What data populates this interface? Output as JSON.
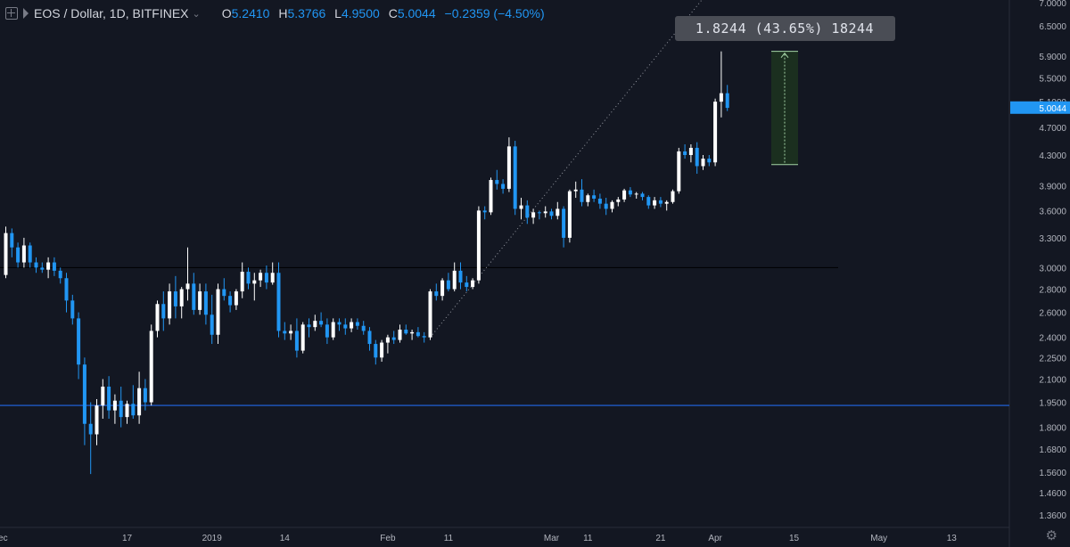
{
  "header": {
    "symbol": "EOS / Dollar, 1D, BITFINEX",
    "chevron": "⌄",
    "o_label": "O",
    "o_value": "5.2410",
    "h_label": "H",
    "h_value": "5.3766",
    "l_label": "L",
    "l_value": "4.9500",
    "c_label": "C",
    "c_value": "5.0044",
    "change": "−0.2359 (−4.50%)"
  },
  "measure_tooltip": "1.8244 (43.65%) 18244",
  "last_price_label": "5.0044",
  "colors": {
    "background": "#131722",
    "up": "#ffffff",
    "down": "#2196f3",
    "support_line": "#1e54b7",
    "resistance_line": "#000000",
    "measure_box": "#1b2f1f",
    "measure_border": "#a5d6a7",
    "text": "#b2b5be"
  },
  "chart_data": {
    "type": "candlestick",
    "y_scale": "log",
    "y_ticks": [
      "7.0000",
      "6.5000",
      "5.9000",
      "5.5000",
      "5.1000",
      "4.7000",
      "4.3000",
      "3.9000",
      "3.6000",
      "3.3000",
      "3.0000",
      "2.8000",
      "2.6000",
      "2.4000",
      "2.2500",
      "2.1000",
      "1.9500",
      "1.8000",
      "1.6800",
      "1.5600",
      "1.4600",
      "1.3600"
    ],
    "x_ticks": [
      "Dec",
      "17",
      "2019",
      "14",
      "Feb",
      "11",
      "Mar",
      "11",
      "21",
      "Apr",
      "15",
      "May",
      "13"
    ],
    "horizontal_lines": [
      1.93,
      3.0
    ],
    "measure": {
      "from": 4.17,
      "to": 5.99,
      "text": "1.8244 (43.65%) 18244"
    },
    "candles": [
      [
        2.93,
        3.42,
        2.9,
        3.35
      ],
      [
        3.35,
        3.4,
        3.1,
        3.2
      ],
      [
        3.2,
        3.25,
        3.0,
        3.05
      ],
      [
        3.05,
        3.3,
        3.0,
        3.22
      ],
      [
        3.22,
        3.25,
        3.0,
        3.05
      ],
      [
        3.05,
        3.1,
        2.95,
        3.0
      ],
      [
        3.0,
        3.05,
        2.95,
        2.98
      ],
      [
        2.98,
        3.1,
        2.9,
        3.05
      ],
      [
        3.05,
        3.1,
        2.92,
        2.97
      ],
      [
        2.97,
        3.0,
        2.85,
        2.9
      ],
      [
        2.9,
        2.95,
        2.6,
        2.7
      ],
      [
        2.7,
        2.75,
        2.5,
        2.55
      ],
      [
        2.55,
        2.6,
        2.1,
        2.2
      ],
      [
        2.2,
        2.25,
        1.7,
        1.82
      ],
      [
        1.82,
        1.95,
        1.55,
        1.76
      ],
      [
        1.76,
        1.97,
        1.7,
        1.93
      ],
      [
        1.93,
        2.1,
        1.85,
        2.05
      ],
      [
        2.05,
        2.12,
        1.85,
        1.9
      ],
      [
        1.9,
        2.0,
        1.82,
        1.96
      ],
      [
        1.96,
        2.05,
        1.8,
        1.86
      ],
      [
        1.86,
        1.96,
        1.82,
        1.94
      ],
      [
        1.94,
        2.06,
        1.85,
        1.87
      ],
      [
        1.87,
        2.15,
        1.82,
        2.04
      ],
      [
        2.04,
        2.1,
        1.9,
        1.95
      ],
      [
        1.95,
        2.5,
        1.93,
        2.45
      ],
      [
        2.45,
        2.7,
        2.4,
        2.67
      ],
      [
        2.67,
        2.78,
        2.45,
        2.55
      ],
      [
        2.55,
        2.85,
        2.5,
        2.78
      ],
      [
        2.78,
        2.92,
        2.55,
        2.65
      ],
      [
        2.65,
        2.82,
        2.55,
        2.8
      ],
      [
        2.8,
        3.2,
        2.7,
        2.85
      ],
      [
        2.85,
        2.95,
        2.58,
        2.62
      ],
      [
        2.62,
        2.85,
        2.58,
        2.78
      ],
      [
        2.78,
        2.85,
        2.5,
        2.58
      ],
      [
        2.58,
        2.75,
        2.35,
        2.42
      ],
      [
        2.42,
        2.85,
        2.35,
        2.8
      ],
      [
        2.8,
        2.9,
        2.7,
        2.74
      ],
      [
        2.74,
        2.78,
        2.6,
        2.66
      ],
      [
        2.66,
        2.8,
        2.62,
        2.78
      ],
      [
        2.78,
        3.05,
        2.72,
        2.96
      ],
      [
        2.96,
        3.0,
        2.8,
        2.85
      ],
      [
        2.85,
        2.95,
        2.7,
        2.88
      ],
      [
        2.88,
        2.98,
        2.82,
        2.95
      ],
      [
        2.95,
        3.02,
        2.8,
        2.86
      ],
      [
        2.86,
        3.05,
        2.84,
        2.95
      ],
      [
        2.95,
        3.05,
        2.4,
        2.45
      ],
      [
        2.45,
        2.52,
        2.38,
        2.43
      ],
      [
        2.43,
        2.5,
        2.38,
        2.45
      ],
      [
        2.45,
        2.55,
        2.25,
        2.3
      ],
      [
        2.3,
        2.52,
        2.28,
        2.5
      ],
      [
        2.5,
        2.55,
        2.4,
        2.48
      ],
      [
        2.48,
        2.58,
        2.45,
        2.53
      ],
      [
        2.53,
        2.6,
        2.48,
        2.5
      ],
      [
        2.5,
        2.55,
        2.35,
        2.4
      ],
      [
        2.4,
        2.55,
        2.38,
        2.52
      ],
      [
        2.52,
        2.55,
        2.45,
        2.5
      ],
      [
        2.5,
        2.55,
        2.42,
        2.47
      ],
      [
        2.47,
        2.55,
        2.44,
        2.52
      ],
      [
        2.52,
        2.55,
        2.46,
        2.49
      ],
      [
        2.49,
        2.53,
        2.42,
        2.45
      ],
      [
        2.45,
        2.48,
        2.3,
        2.35
      ],
      [
        2.35,
        2.38,
        2.2,
        2.25
      ],
      [
        2.25,
        2.38,
        2.22,
        2.36
      ],
      [
        2.36,
        2.42,
        2.28,
        2.4
      ],
      [
        2.4,
        2.45,
        2.35,
        2.38
      ],
      [
        2.38,
        2.5,
        2.36,
        2.46
      ],
      [
        2.46,
        2.5,
        2.42,
        2.43
      ],
      [
        2.43,
        2.46,
        2.38,
        2.44
      ],
      [
        2.44,
        2.48,
        2.4,
        2.41
      ],
      [
        2.41,
        2.44,
        2.36,
        2.4
      ],
      [
        2.4,
        2.8,
        2.38,
        2.78
      ],
      [
        2.78,
        2.85,
        2.7,
        2.74
      ],
      [
        2.74,
        2.9,
        2.7,
        2.88
      ],
      [
        2.88,
        2.95,
        2.78,
        2.8
      ],
      [
        2.8,
        3.05,
        2.78,
        2.97
      ],
      [
        2.97,
        3.05,
        2.8,
        2.86
      ],
      [
        2.86,
        2.92,
        2.78,
        2.82
      ],
      [
        2.82,
        2.9,
        2.8,
        2.88
      ],
      [
        2.88,
        3.65,
        2.85,
        3.6
      ],
      [
        3.6,
        3.65,
        3.5,
        3.58
      ],
      [
        3.58,
        4.0,
        3.55,
        3.97
      ],
      [
        3.97,
        4.1,
        3.85,
        3.92
      ],
      [
        3.92,
        3.98,
        3.8,
        3.86
      ],
      [
        3.86,
        4.55,
        3.82,
        4.42
      ],
      [
        4.42,
        4.5,
        3.55,
        3.62
      ],
      [
        3.62,
        3.75,
        3.5,
        3.66
      ],
      [
        3.66,
        3.72,
        3.45,
        3.52
      ],
      [
        3.52,
        3.62,
        3.45,
        3.58
      ],
      [
        3.58,
        3.6,
        3.5,
        3.57
      ],
      [
        3.57,
        3.65,
        3.52,
        3.59
      ],
      [
        3.59,
        3.62,
        3.5,
        3.54
      ],
      [
        3.54,
        3.7,
        3.5,
        3.62
      ],
      [
        3.62,
        3.65,
        3.2,
        3.3
      ],
      [
        3.3,
        3.85,
        3.25,
        3.83
      ],
      [
        3.83,
        3.95,
        3.75,
        3.85
      ],
      [
        3.85,
        3.98,
        3.65,
        3.7
      ],
      [
        3.7,
        3.8,
        3.65,
        3.78
      ],
      [
        3.78,
        3.85,
        3.7,
        3.74
      ],
      [
        3.74,
        3.8,
        3.62,
        3.68
      ],
      [
        3.68,
        3.75,
        3.55,
        3.62
      ],
      [
        3.62,
        3.72,
        3.58,
        3.7
      ],
      [
        3.7,
        3.76,
        3.65,
        3.73
      ],
      [
        3.73,
        3.86,
        3.7,
        3.84
      ],
      [
        3.84,
        3.88,
        3.76,
        3.79
      ],
      [
        3.79,
        3.82,
        3.74,
        3.8
      ],
      [
        3.8,
        3.82,
        3.72,
        3.76
      ],
      [
        3.76,
        3.78,
        3.62,
        3.66
      ],
      [
        3.66,
        3.76,
        3.62,
        3.72
      ],
      [
        3.72,
        3.76,
        3.64,
        3.68
      ],
      [
        3.68,
        3.72,
        3.6,
        3.7
      ],
      [
        3.7,
        3.85,
        3.68,
        3.83
      ],
      [
        3.83,
        4.4,
        3.8,
        4.35
      ],
      [
        4.35,
        4.45,
        4.25,
        4.3
      ],
      [
        4.3,
        4.45,
        4.2,
        4.4
      ],
      [
        4.4,
        4.48,
        4.05,
        4.15
      ],
      [
        4.15,
        4.3,
        4.1,
        4.25
      ],
      [
        4.25,
        4.3,
        4.15,
        4.2
      ],
      [
        4.2,
        5.15,
        4.15,
        5.1
      ],
      [
        5.1,
        5.99,
        4.85,
        5.24
      ],
      [
        5.24,
        5.38,
        4.95,
        5.0
      ]
    ]
  }
}
